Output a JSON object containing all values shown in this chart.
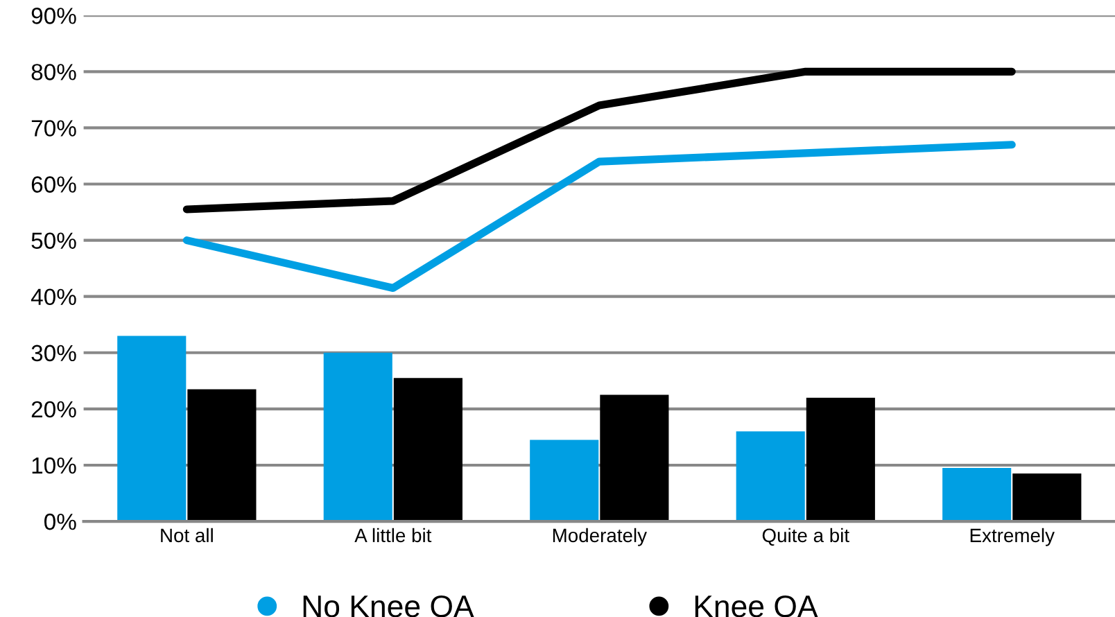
{
  "chart_data": {
    "type": "bar",
    "categories": [
      "Not all",
      "A little bit",
      "Moderately",
      "Quite a bit",
      "Extremely"
    ],
    "series": [
      {
        "name": "No Knee OA",
        "color": "#009fe3",
        "values": [
          33,
          30,
          14.5,
          16,
          9.5
        ]
      },
      {
        "name": "Knee OA",
        "color": "#000000",
        "values": [
          23.5,
          25.5,
          22.5,
          22,
          8.5
        ]
      },
      {
        "type": "line",
        "color": "#009fe3",
        "values": [
          50,
          41.5,
          64,
          65.5,
          67
        ]
      },
      {
        "type": "line",
        "color": "#000000",
        "values": [
          55.5,
          57,
          74,
          80,
          80
        ]
      }
    ],
    "ylim": [
      0,
      90
    ],
    "yticks": [
      {
        "value": 0,
        "label": "0%"
      },
      {
        "value": 10,
        "label": "10%"
      },
      {
        "value": 20,
        "label": "20%"
      },
      {
        "value": 30,
        "label": "30%"
      },
      {
        "value": 40,
        "label": "40%"
      },
      {
        "value": 50,
        "label": "50%"
      },
      {
        "value": 60,
        "label": "60%"
      },
      {
        "value": 70,
        "label": "70%"
      },
      {
        "value": 80,
        "label": "80%"
      },
      {
        "value": 90,
        "label": "90%"
      }
    ],
    "grid": "y",
    "legend": "bottom",
    "marker": "none",
    "line_style": "solid"
  }
}
